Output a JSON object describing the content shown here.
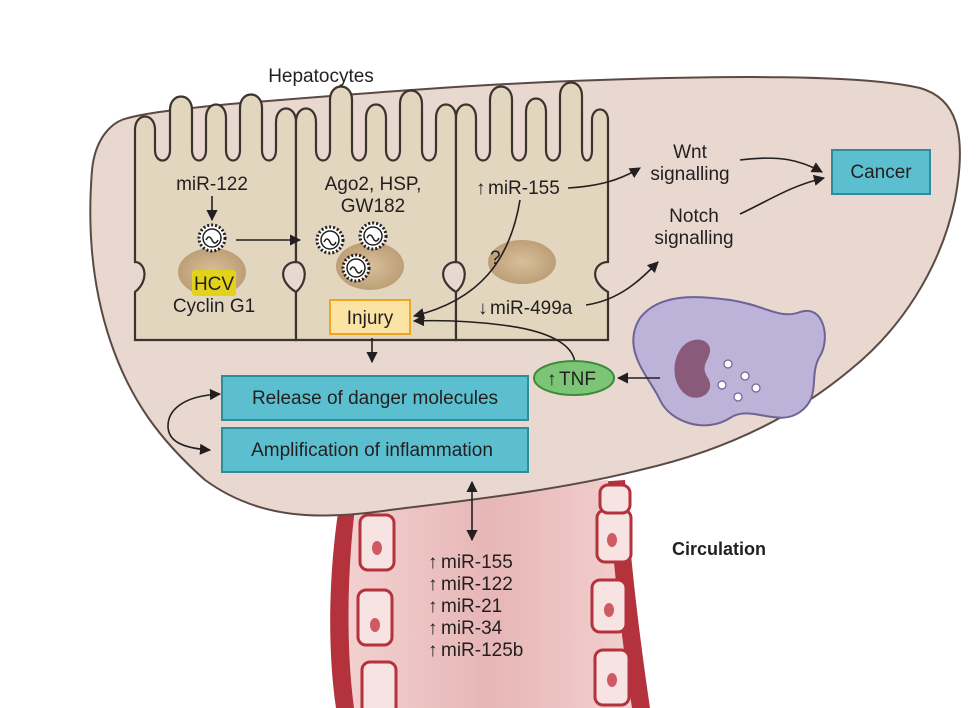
{
  "labels": {
    "hepatocytes": "Hepatocytes",
    "mir122_cell": "miR-122",
    "hcv": "HCV",
    "cyclin": "Cyclin G1",
    "ago2_line1": "Ago2, HSP,",
    "ago2_line2": "GW182",
    "up_mir155": "miR-155",
    "question": "?",
    "down_mir499a": "miR-499a",
    "injury": "Injury",
    "wnt_line1": "Wnt",
    "wnt_line2": "signalling",
    "notch_line1": "Notch",
    "notch_line2": "signalling",
    "cancer": "Cancer",
    "tnf": "TNF",
    "release": "Release of danger molecules",
    "amplification": "Amplification of inflammation",
    "circulation": "Circulation"
  },
  "circulating_mirnas": [
    "miR-155",
    "miR-122",
    "miR-21",
    "miR-34",
    "miR-125b"
  ],
  "colors": {
    "liver_fill": "#e8d8cf",
    "liver_stroke": "#5a4a44",
    "cell_fill": "#e2d6bf",
    "nucleus_fill": "#c9ad86",
    "hcv_highlight": "#e3d21a",
    "injury_fill": "#fbe3a4",
    "injury_stroke": "#f0a51e",
    "blue_box_fill": "#5bbfcf",
    "blue_box_stroke": "#2f8c9c",
    "tnf_fill": "#7cc576",
    "tnf_stroke": "#3c8a3a",
    "vessel_red": "#b02a36",
    "vessel_inner": "#e8b5b5",
    "macrophage_fill": "#bdb3d8",
    "macrophage_nucleus": "#8a5a7a"
  }
}
